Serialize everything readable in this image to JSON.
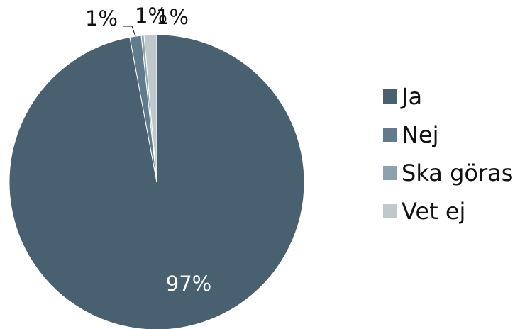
{
  "chart_data": {
    "type": "pie",
    "title": "",
    "legend_position": "right",
    "categories": [
      "Ja",
      "Nej",
      "Ska göras",
      "Vet ej"
    ],
    "values": [
      97,
      1,
      1,
      1
    ],
    "data_labels": [
      "97%",
      "1%",
      "1%",
      "1%"
    ],
    "colors": [
      "#48606f",
      "#5f7b8c",
      "#8ea2ad",
      "#bfc8cd"
    ]
  },
  "legend": {
    "items": [
      {
        "label": "Ja",
        "color": "#48606f"
      },
      {
        "label": "Nej",
        "color": "#5f7b8c"
      },
      {
        "label": "Ska göras",
        "color": "#8ea2ad"
      },
      {
        "label": "Vet ej",
        "color": "#bfc8cd"
      }
    ]
  }
}
